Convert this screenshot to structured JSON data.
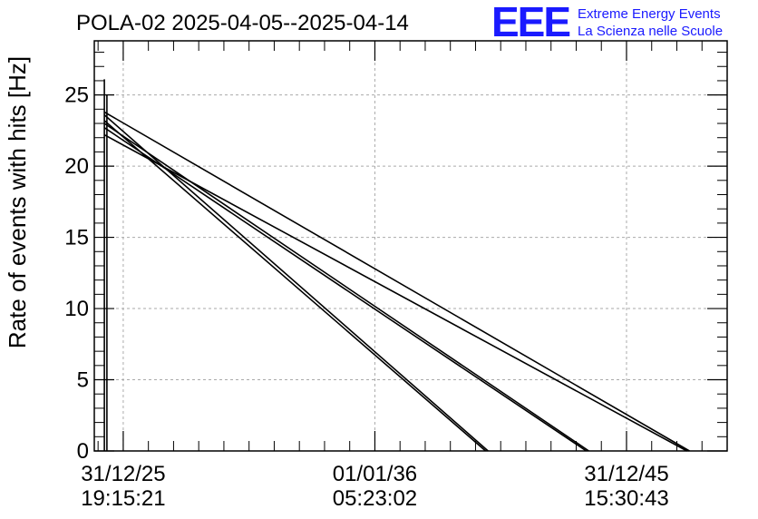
{
  "chart_data": {
    "type": "line",
    "title": "POLA-02 2025-04-05--2025-04-14",
    "ylabel": "Rate of events with hits [Hz]",
    "xlabel": "",
    "ylim": [
      0,
      28.8
    ],
    "yticks": [
      0,
      5,
      10,
      15,
      20,
      25
    ],
    "xlim": [
      -1.15,
      24.0
    ],
    "xticks": [
      {
        "x": 0,
        "line1": "31/12/25",
        "line2": "19:15:21"
      },
      {
        "x": 10,
        "line1": "01/01/36",
        "line2": "05:23:02"
      },
      {
        "x": 20,
        "line1": "31/12/45",
        "line2": "15:30:43"
      }
    ],
    "grid": true,
    "series": [
      {
        "x": [
          -0.75,
          -0.75
        ],
        "y": [
          0,
          26.1
        ]
      },
      {
        "x": [
          -0.65,
          -0.65
        ],
        "y": [
          0,
          25.0
        ]
      },
      {
        "x": [
          -0.75,
          14.5
        ],
        "y": [
          23.6,
          0
        ]
      },
      {
        "x": [
          -0.75,
          14.4
        ],
        "y": [
          23.2,
          0
        ]
      },
      {
        "x": [
          -0.75,
          18.5
        ],
        "y": [
          23.0,
          0
        ]
      },
      {
        "x": [
          -0.75,
          18.4
        ],
        "y": [
          22.7,
          0
        ]
      },
      {
        "x": [
          -0.75,
          22.5
        ],
        "y": [
          23.8,
          0
        ]
      },
      {
        "x": [
          -0.75,
          22.4
        ],
        "y": [
          22.2,
          0
        ]
      }
    ]
  },
  "logo": {
    "text": "EEE",
    "line1": "Extreme Energy Events",
    "line2": "La Scienza nelle Scuole",
    "color": "#1a1aff"
  }
}
